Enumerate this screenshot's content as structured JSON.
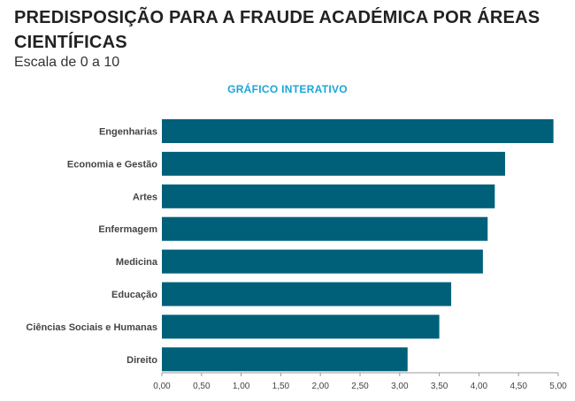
{
  "header": {
    "title": "PREDISPOSIÇÃO PARA A FRAUDE ACADÉMICA POR ÁREAS CIENTÍFICAS",
    "subtitle": "Escala de 0 a 10",
    "interactive_label": "GRÁFICO INTERATIVO"
  },
  "colors": {
    "bar": "#00607a",
    "accent": "#1aa6d6",
    "axis": "#999999"
  },
  "chart_data": {
    "type": "bar",
    "orientation": "horizontal",
    "title": "PREDISPOSIÇÃO PARA A FRAUDE ACADÉMICA POR ÁREAS CIENTÍFICAS",
    "subtitle": "Escala de 0 a 10",
    "xlabel": "",
    "ylabel": "",
    "categories": [
      "Engenharias",
      "Economia e Gestão",
      "Artes",
      "Enfermagem",
      "Medicina",
      "Educação",
      "Ciências Sociais e Humanas",
      "Direito"
    ],
    "values": [
      4.94,
      4.33,
      4.2,
      4.11,
      4.05,
      3.65,
      3.5,
      3.1
    ],
    "xlim": [
      0,
      5
    ],
    "ticks": [
      "0,00",
      "0,50",
      "1,00",
      "1,50",
      "2,00",
      "2,50",
      "3,00",
      "3,50",
      "4,00",
      "4,50",
      "5,00"
    ],
    "grid": false,
    "legend": "none"
  }
}
